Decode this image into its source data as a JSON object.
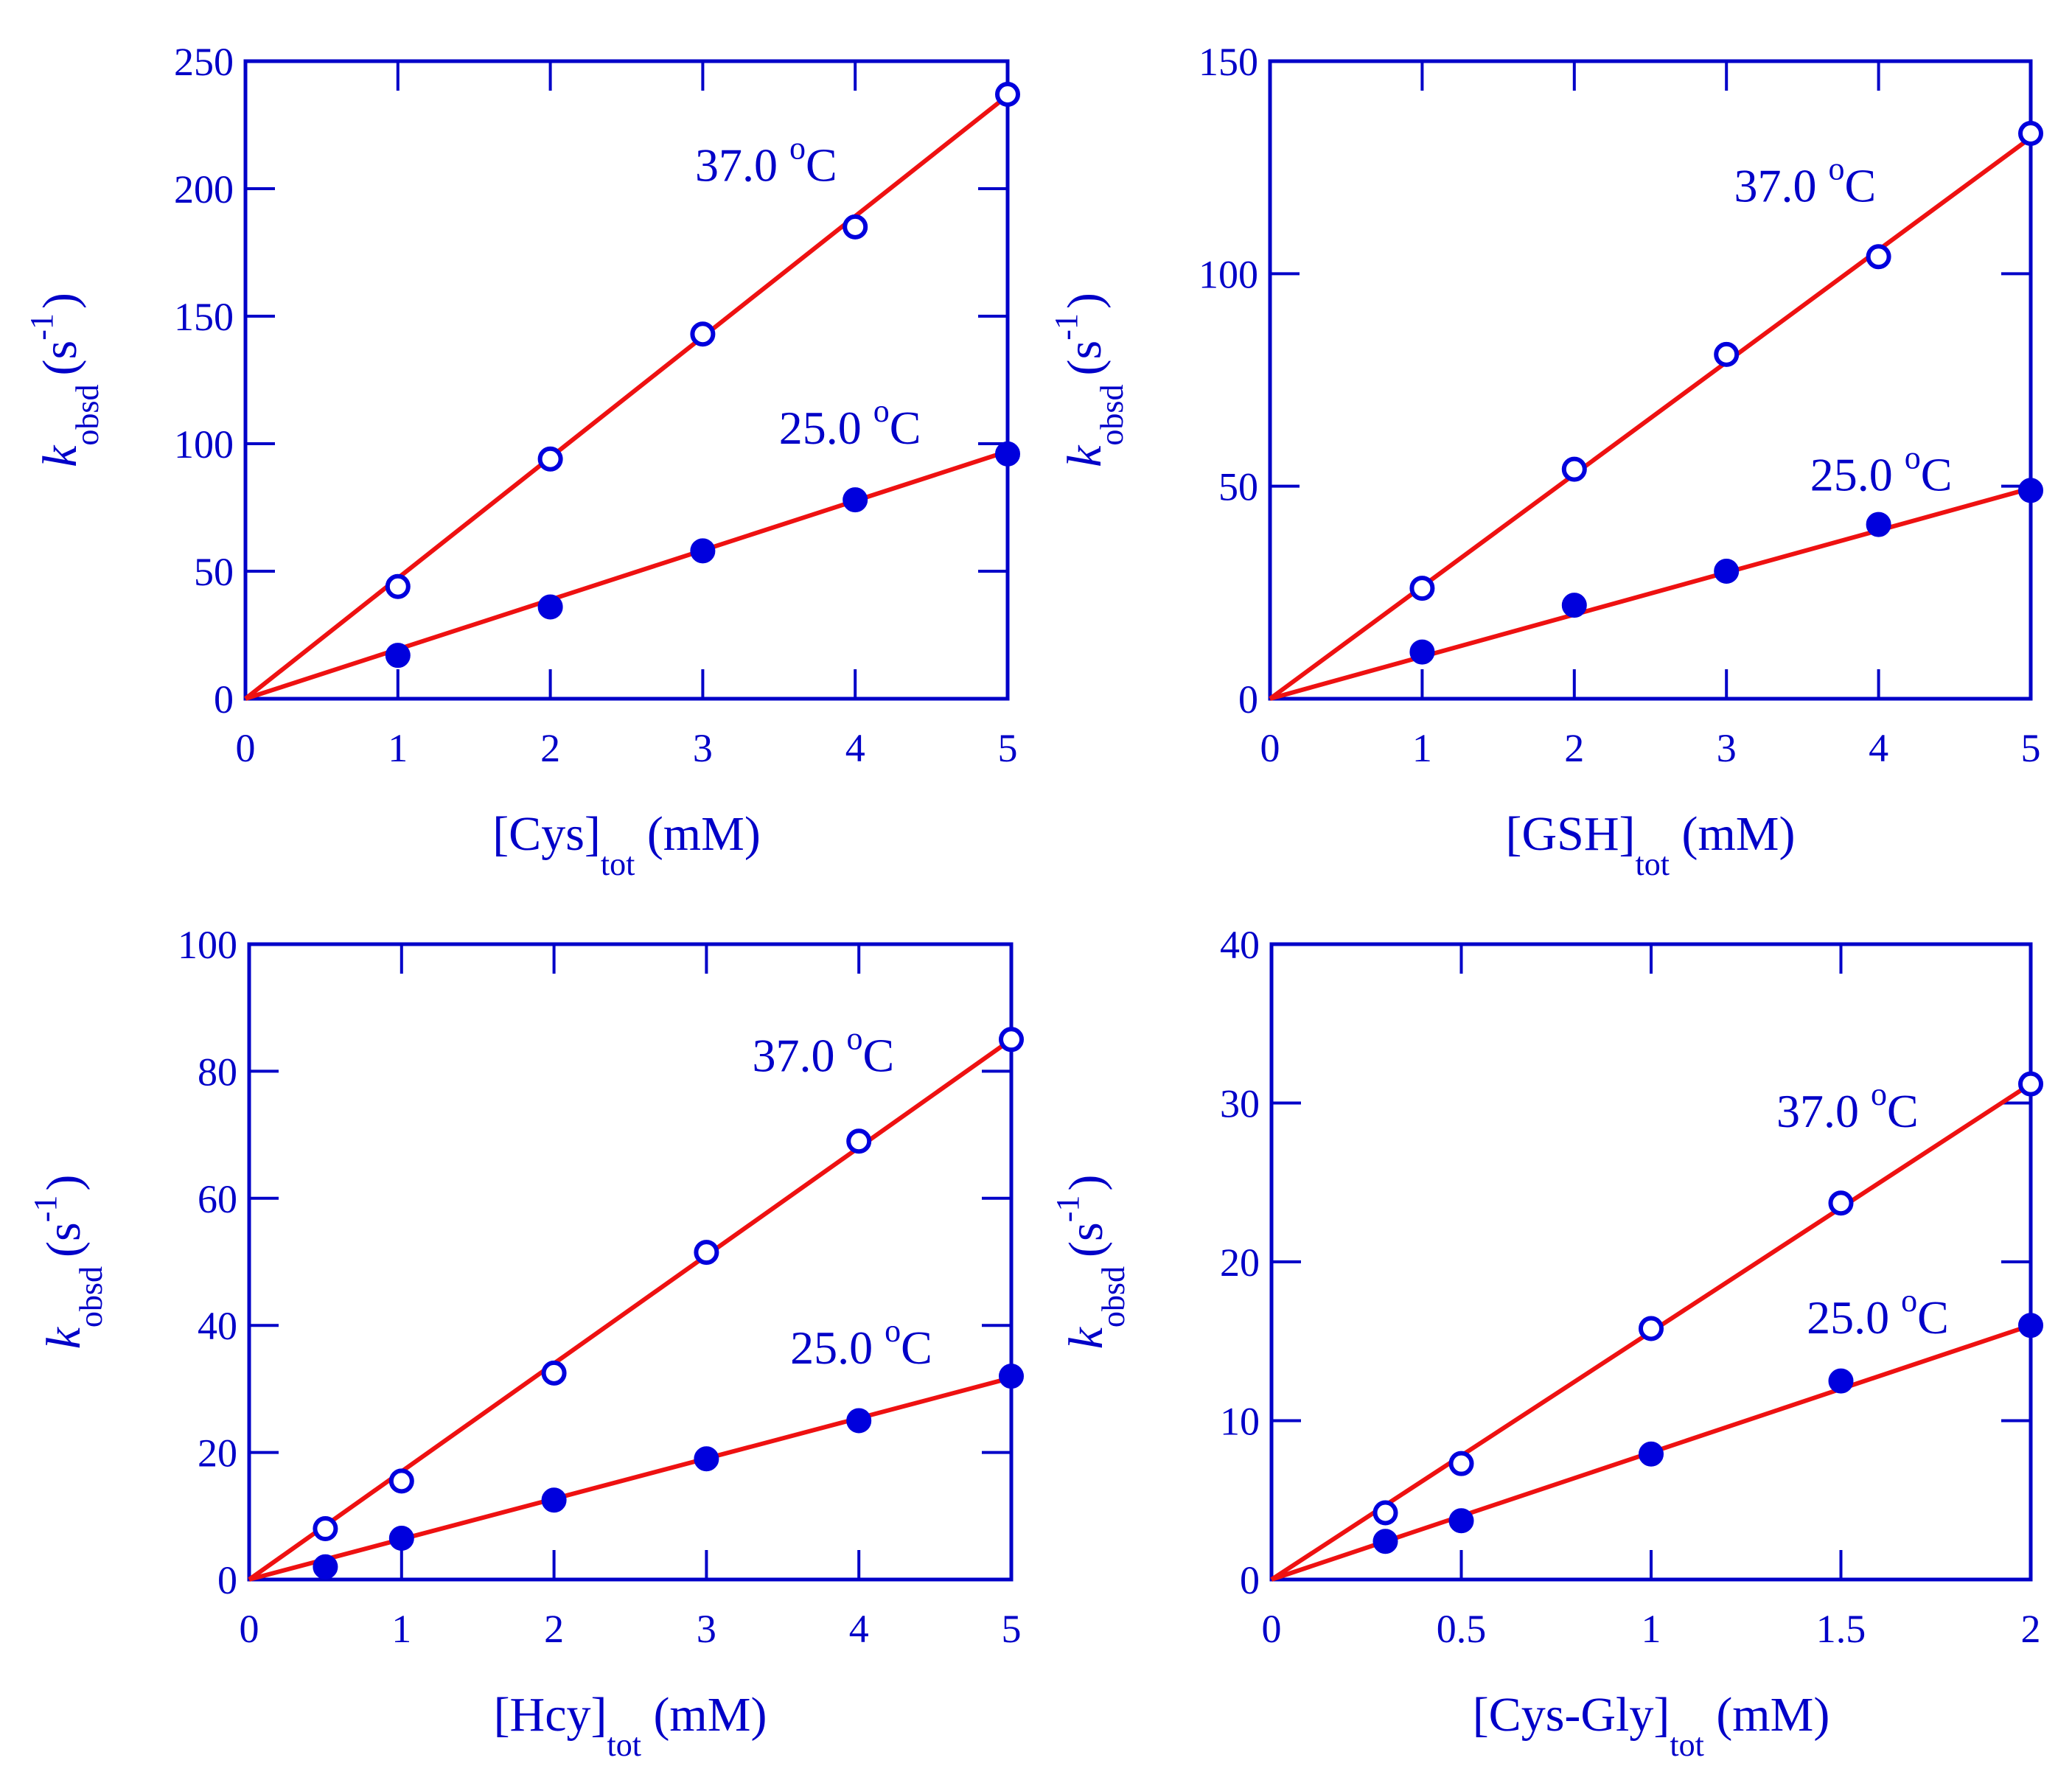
{
  "colors": {
    "axis": "#0000C8",
    "fit_line": "#EE1111",
    "marker": "#0000DD",
    "background": "#FFFFFF"
  },
  "chart_data": [
    {
      "type": "scatter",
      "xlabel": {
        "main": "[Cys]",
        "sub": "tot",
        "unit": " (mM)"
      },
      "ylabel": {
        "k": "k",
        "sub": "obsd",
        "unit_pre": "(s",
        "unit_sup": "-1",
        "unit_post": ")"
      },
      "xlim": [
        0,
        5
      ],
      "ylim": [
        0,
        250
      ],
      "xticks": [
        0,
        1,
        2,
        3,
        4,
        5
      ],
      "yticks": [
        0,
        50,
        100,
        150,
        200,
        250
      ],
      "tick_labels_x": [
        "0",
        "1",
        "2",
        "3",
        "4",
        "5"
      ],
      "tick_labels_y": [
        "0",
        "50",
        "100",
        "150",
        "200",
        "250"
      ],
      "grid": false,
      "series": [
        {
          "name": "37.0 °C",
          "label_deg": "o",
          "label_unit": "C",
          "marker": "open-circle",
          "x": [
            1,
            2,
            3,
            4,
            5
          ],
          "y": [
            44,
            94,
            143,
            185,
            237
          ],
          "fit_slope": 47.3
        },
        {
          "name": "25.0 °C",
          "label_deg": "o",
          "label_unit": "C",
          "marker": "filled-circle",
          "x": [
            1,
            2,
            3,
            4,
            5
          ],
          "y": [
            17,
            36,
            58,
            78,
            96
          ],
          "fit_slope": 19.4
        }
      ],
      "labels": [
        {
          "text": "37.0 ",
          "deg": "o",
          "unit": "C",
          "x": 2.95,
          "y": 203
        },
        {
          "text": "25.0 ",
          "deg": "o",
          "unit": "C",
          "x": 3.5,
          "y": 100
        }
      ]
    },
    {
      "type": "scatter",
      "xlabel": {
        "main": "[GSH]",
        "sub": "tot",
        "unit": " (mM)"
      },
      "ylabel": {
        "k": "k",
        "sub": "obsd",
        "unit_pre": "(s",
        "unit_sup": "-1",
        "unit_post": ")"
      },
      "xlim": [
        0,
        5
      ],
      "ylim": [
        0,
        150
      ],
      "xticks": [
        0,
        1,
        2,
        3,
        4,
        5
      ],
      "yticks": [
        0,
        50,
        100,
        150
      ],
      "tick_labels_x": [
        "0",
        "1",
        "2",
        "3",
        "4",
        "5"
      ],
      "tick_labels_y": [
        "0",
        "50",
        "100",
        "150"
      ],
      "grid": false,
      "series": [
        {
          "name": "37.0 °C",
          "label_deg": "o",
          "label_unit": "C",
          "marker": "open-circle",
          "x": [
            1,
            2,
            3,
            4,
            5
          ],
          "y": [
            26,
            54,
            81,
            104,
            133
          ],
          "fit_slope": 26.4
        },
        {
          "name": "25.0 °C",
          "label_deg": "o",
          "label_unit": "C",
          "marker": "filled-circle",
          "x": [
            1,
            2,
            3,
            4,
            5
          ],
          "y": [
            11,
            22,
            30,
            41,
            49
          ],
          "fit_slope": 9.9
        }
      ],
      "labels": [
        {
          "text": "37.0 ",
          "deg": "o",
          "unit": "C",
          "x": 3.05,
          "y": 117
        },
        {
          "text": "25.0 ",
          "deg": "o",
          "unit": "C",
          "x": 3.55,
          "y": 49
        }
      ]
    },
    {
      "type": "scatter",
      "xlabel": {
        "main": "[Hcy]",
        "sub": "tot",
        "unit": " (mM)"
      },
      "ylabel": {
        "k": "k",
        "sub": "obsd",
        "unit_pre": "(s",
        "unit_sup": "-1",
        "unit_post": ")"
      },
      "xlim": [
        0,
        5
      ],
      "ylim": [
        0,
        100
      ],
      "xticks": [
        0,
        1,
        2,
        3,
        4,
        5
      ],
      "yticks": [
        0,
        20,
        40,
        60,
        80,
        100
      ],
      "tick_labels_x": [
        "0",
        "1",
        "2",
        "3",
        "4",
        "5"
      ],
      "tick_labels_y": [
        "0",
        "20",
        "40",
        "60",
        "80",
        "100"
      ],
      "grid": false,
      "series": [
        {
          "name": "37.0 °C",
          "label_deg": "o",
          "label_unit": "C",
          "marker": "open-circle",
          "x": [
            0.5,
            1,
            2,
            3,
            4,
            5
          ],
          "y": [
            8,
            15.5,
            32.5,
            51.5,
            69,
            85
          ],
          "fit_slope": 17.0
        },
        {
          "name": "25.0 °C",
          "label_deg": "o",
          "label_unit": "C",
          "marker": "filled-circle",
          "x": [
            0.5,
            1,
            2,
            3,
            4,
            5
          ],
          "y": [
            2,
            6.5,
            12.5,
            19,
            25,
            32
          ],
          "fit_slope": 6.35
        }
      ],
      "labels": [
        {
          "text": "37.0 ",
          "deg": "o",
          "unit": "C",
          "x": 3.3,
          "y": 80
        },
        {
          "text": "25.0 ",
          "deg": "o",
          "unit": "C",
          "x": 3.55,
          "y": 34
        }
      ]
    },
    {
      "type": "scatter",
      "xlabel": {
        "main": "[Cys-Gly]",
        "sub": "tot",
        "unit": " (mM)"
      },
      "ylabel": {
        "k": "k",
        "sub": "obsd",
        "unit_pre": "(s",
        "unit_sup": "-1",
        "unit_post": ")"
      },
      "xlim": [
        0,
        2
      ],
      "ylim": [
        0,
        40
      ],
      "xticks": [
        0,
        0.5,
        1,
        1.5,
        2
      ],
      "yticks": [
        0,
        10,
        20,
        30,
        40
      ],
      "tick_labels_x": [
        "0",
        "0.5",
        "1",
        "1.5",
        "2"
      ],
      "tick_labels_y": [
        "0",
        "10",
        "20",
        "30",
        "40"
      ],
      "grid": false,
      "series": [
        {
          "name": "37.0 °C",
          "label_deg": "o",
          "label_unit": "C",
          "marker": "open-circle",
          "x": [
            0.3,
            0.5,
            1,
            1.5,
            2
          ],
          "y": [
            4.2,
            7.3,
            15.8,
            23.7,
            31.2
          ],
          "fit_slope": 15.6
        },
        {
          "name": "25.0 °C",
          "label_deg": "o",
          "label_unit": "C",
          "marker": "filled-circle",
          "x": [
            0.3,
            0.5,
            1,
            1.5,
            2
          ],
          "y": [
            2.4,
            3.7,
            7.9,
            12.5,
            16
          ],
          "fit_slope": 8.0
        }
      ],
      "labels": [
        {
          "text": "37.0 ",
          "deg": "o",
          "unit": "C",
          "x": 1.33,
          "y": 28.5
        },
        {
          "text": "25.0 ",
          "deg": "o",
          "unit": "C",
          "x": 1.41,
          "y": 15.5
        }
      ]
    }
  ]
}
